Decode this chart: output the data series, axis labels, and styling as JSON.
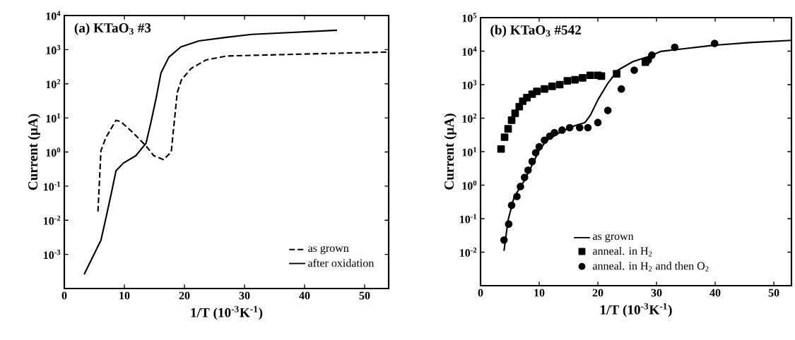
{
  "chart_data": [
    {
      "type": "line",
      "title": "(a) KTaO$_{3}$ #3",
      "xlabel": "1/T (10$^{-3}$K$^{-1}$)",
      "ylabel": "Current (μA)",
      "log": "y",
      "legend": "bottom right",
      "xlim": [
        0,
        54
      ],
      "ylim": [
        0.0001,
        10000
      ],
      "xticks": [
        0,
        10,
        20,
        30,
        40,
        50
      ],
      "yticks": [
        {
          "value": 0.0001,
          "label": null
        },
        {
          "value": 0.001,
          "label": "10$^{-3}$"
        },
        {
          "value": 0.01,
          "label": "10$^{-2}$"
        },
        {
          "value": 0.1,
          "label": "10$^{-1}$"
        },
        {
          "value": 1,
          "label": "10$^{0}$"
        },
        {
          "value": 10,
          "label": "10$^{1}$"
        },
        {
          "value": 100,
          "label": "10$^{2}$"
        },
        {
          "value": 1000,
          "label": "10$^{3}$"
        },
        {
          "value": 10000,
          "label": "10$^{4}$"
        }
      ],
      "series": [
        {
          "name": "as grown",
          "color": "#000000",
          "line_style": "dashed",
          "x": [
            5.6,
            6.1,
            6.9,
            8.6,
            9.4,
            11.5,
            13.6,
            14.9,
            16.5,
            17.8,
            18.2,
            18.8,
            19.5,
            21.1,
            23.6,
            27,
            35.4,
            53.8
          ],
          "values": [
            0.018,
            1.1,
            2.6,
            8.5,
            7.8,
            3.6,
            1.5,
            0.78,
            0.6,
            1.0,
            5.0,
            55,
            130,
            280,
            500,
            650,
            710,
            850
          ]
        },
        {
          "name": "after oxidation",
          "color": "#000000",
          "line_style": "solid",
          "x": [
            3.3,
            6.1,
            6.9,
            7.9,
            8.6,
            9.8,
            11.9,
            13.6,
            14.4,
            15.3,
            16.1,
            17.4,
            19.4,
            22.4,
            27,
            31.2,
            45.4
          ],
          "values": [
            0.00026,
            0.0026,
            0.011,
            0.071,
            0.28,
            0.47,
            0.78,
            1.8,
            7.1,
            39,
            210,
            600,
            1200,
            1800,
            2300,
            2800,
            3700
          ]
        }
      ]
    },
    {
      "type": "line",
      "title": "(b) KTaO$_{3}$ #542",
      "xlabel": "1/T (10$^{-3}$K$^{-1}$)",
      "ylabel": "Current (μA)",
      "log": "y",
      "legend": "bottom",
      "xlim": [
        0,
        53
      ],
      "ylim": [
        0.001,
        100000
      ],
      "xticks": [
        0,
        10,
        20,
        30,
        40,
        50
      ],
      "yticks": [
        {
          "value": 0.001,
          "label": null
        },
        {
          "value": 0.01,
          "label": "10$^{-2}$"
        },
        {
          "value": 0.1,
          "label": "10$^{-1}$"
        },
        {
          "value": 1,
          "label": "10$^{0}$"
        },
        {
          "value": 10,
          "label": "10$^{1}$"
        },
        {
          "value": 100,
          "label": "10$^{2}$"
        },
        {
          "value": 1000,
          "label": "10$^{3}$"
        },
        {
          "value": 10000,
          "label": "10$^{4}$"
        },
        {
          "value": 100000,
          "label": "10$^{5}$"
        }
      ],
      "series": [
        {
          "name": "as grown",
          "type": "line",
          "color": "#000000",
          "line_style": "solid",
          "marker": "none",
          "x": [
            4.0,
            4.7,
            5.7,
            7.5,
            9.0,
            10.0,
            11.3,
            13.5,
            15.6,
            17.8,
            18.7,
            20,
            21.7,
            23.4,
            26,
            28.6,
            30.7,
            35,
            39.8,
            45.8,
            52.9
          ],
          "values": [
            0.011,
            0.091,
            0.43,
            1.4,
            4.7,
            11,
            22,
            37,
            56,
            74,
            120,
            350,
            1100,
            2700,
            4900,
            6900,
            9800,
            12000,
            15000,
            18000,
            21000
          ]
        },
        {
          "name": "anneal. in H$_{2}$",
          "type": "scatter",
          "color": "#000000",
          "marker": "square",
          "x": [
            3.5,
            4.1,
            4.7,
            5.3,
            5.9,
            6.6,
            7.2,
            7.9,
            8.8,
            9.6,
            10.9,
            12.2,
            13.5,
            14.8,
            16.1,
            17.4,
            18.7,
            20,
            20.6,
            23.2,
            28.1
          ],
          "values": [
            12,
            27,
            48,
            87,
            140,
            220,
            320,
            410,
            520,
            630,
            740,
            890,
            1000,
            1300,
            1400,
            1600,
            1900,
            1900,
            1800,
            2100,
            4700
          ]
        },
        {
          "name": "anneal. in H$_{2}$ and then O$_{2}$",
          "type": "scatter",
          "color": "#000000",
          "marker": "circle",
          "x": [
            4.0,
            4.8,
            5.3,
            6.2,
            6.8,
            7.5,
            8.1,
            8.8,
            9.4,
            10,
            10.9,
            11.8,
            12.6,
            13.9,
            15.2,
            16.9,
            18.3,
            20,
            21.7,
            24,
            26.2,
            28.6,
            29.2,
            33.1,
            39.9
          ],
          "values": [
            0.023,
            0.069,
            0.25,
            0.46,
            0.91,
            1.7,
            2.8,
            5.1,
            9.3,
            14,
            22,
            29,
            37,
            44,
            52,
            52,
            52,
            74,
            170,
            740,
            2700,
            5400,
            7600,
            13000,
            17000
          ]
        }
      ]
    }
  ]
}
